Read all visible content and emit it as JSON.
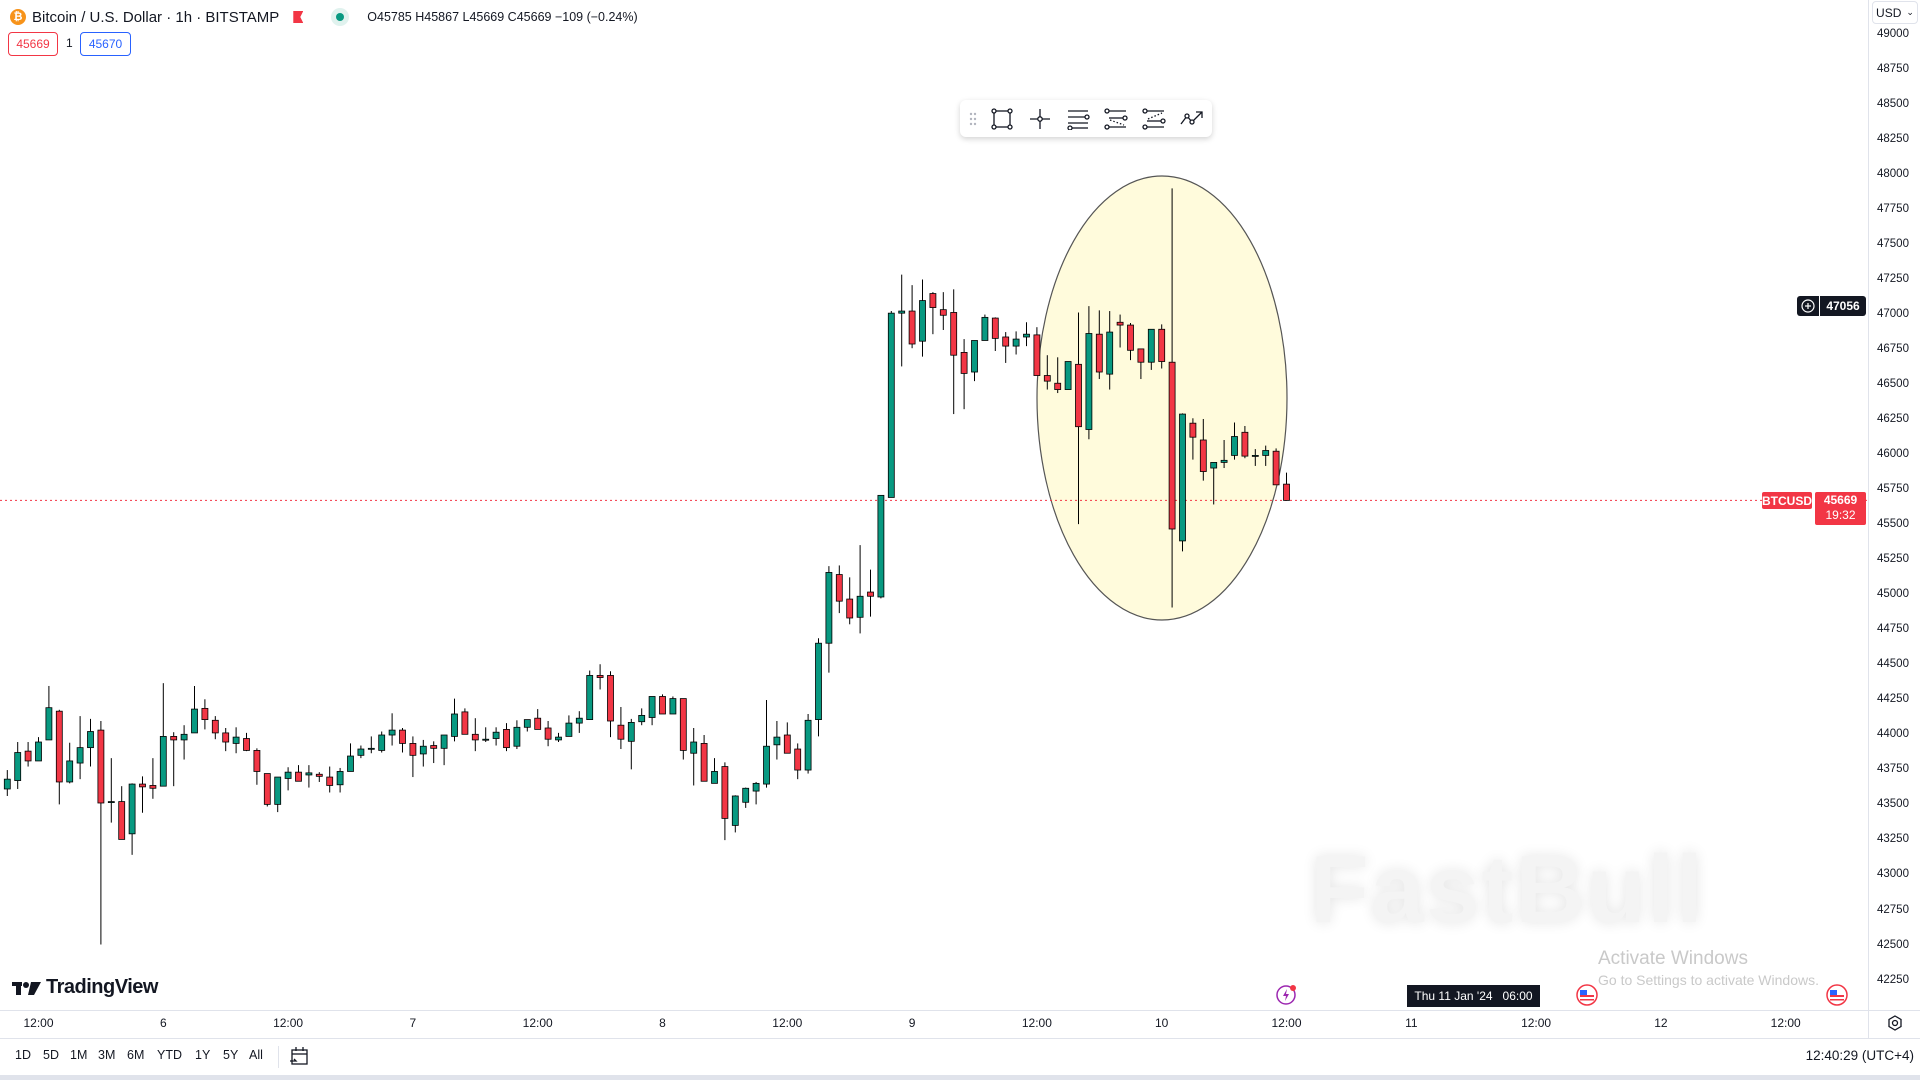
{
  "header": {
    "coin_icon": "bitcoin-icon",
    "title": "Bitcoin / U.S. Dollar · 1h · BITSTAMP",
    "ohlc": "O45785 H45867 L45669 C45669 −109 (−0.24%)",
    "sell_price": "45669",
    "spread": "1",
    "buy_price": "45670"
  },
  "currency_button": "USD",
  "drawing_toolbar": {
    "icons": [
      "drag-handle-icon",
      "rectangle-icon",
      "crosshair-icon",
      "horizontal-lines-icon",
      "parallel-channel-icon",
      "regression-channel-icon",
      "trend-arrow-icon"
    ]
  },
  "price_axis": {
    "ticks": [
      "49000",
      "48750",
      "48500",
      "48250",
      "48000",
      "47750",
      "47500",
      "47250",
      "47000",
      "46750",
      "46500",
      "46250",
      "46000",
      "45750",
      "45500",
      "45250",
      "45000",
      "44750",
      "44500",
      "44250",
      "44000",
      "43750",
      "43500",
      "43250",
      "43000",
      "42750",
      "42500",
      "42250"
    ],
    "crosshair_price": "47056",
    "symbol_label": "BTCUSD",
    "last_price": "45669",
    "countdown": "19:32"
  },
  "time_axis": {
    "ticks": [
      "12:00",
      "6",
      "12:00",
      "7",
      "12:00",
      "8",
      "12:00",
      "9",
      "12:00",
      "10",
      "12:00",
      "11",
      "12:00",
      "12",
      "12:00"
    ],
    "crosshair_time": "Thu 11 Jan '24   06:00"
  },
  "bottom_bar": {
    "ranges": [
      "1D",
      "5D",
      "1M",
      "3M",
      "6M",
      "YTD",
      "1Y",
      "5Y",
      "All"
    ],
    "clock": "12:40:29 (UTC+4)"
  },
  "branding": {
    "logo": "TradingView",
    "watermark": "FastBull"
  },
  "os_overlay": {
    "line1": "Activate Windows",
    "line2": "Go to Settings to activate Windows."
  },
  "colors": {
    "up": "#089981",
    "down": "#f23645",
    "highlight": "#fffbdc",
    "sell": "#f23645",
    "buy": "#2962ff"
  },
  "chart_data": {
    "type": "candlestick",
    "symbol": "BTCUSD",
    "interval": "1h",
    "x_start": "Jan 5 09:00",
    "x_end": "Jan 10 12:00",
    "ylim": [
      42000,
      49100
    ],
    "columns": [
      "open",
      "high",
      "low",
      "close"
    ],
    "ohlc": [
      [
        43610,
        43745,
        43560,
        43680
      ],
      [
        43670,
        43945,
        43610,
        43870
      ],
      [
        43880,
        43945,
        43770,
        43810
      ],
      [
        43810,
        43980,
        43810,
        43945
      ],
      [
        43960,
        44345,
        43960,
        44190
      ],
      [
        44165,
        44175,
        43500,
        43660
      ],
      [
        43660,
        43940,
        43650,
        43810
      ],
      [
        43795,
        44130,
        43680,
        43905
      ],
      [
        43905,
        44110,
        43770,
        44020
      ],
      [
        44030,
        44095,
        42500,
        43510
      ],
      [
        43520,
        43830,
        43370,
        43520
      ],
      [
        43520,
        43630,
        43250,
        43250
      ],
      [
        43290,
        43650,
        43140,
        43645
      ],
      [
        43645,
        43700,
        43440,
        43625
      ],
      [
        43635,
        43830,
        43540,
        43615
      ],
      [
        43630,
        44365,
        43630,
        43985
      ],
      [
        43985,
        44015,
        43630,
        43960
      ],
      [
        43960,
        44065,
        43820,
        44000
      ],
      [
        44010,
        44345,
        44010,
        44180
      ],
      [
        44185,
        44250,
        44035,
        44105
      ],
      [
        44100,
        44130,
        43965,
        44010
      ],
      [
        44010,
        44045,
        43880,
        43945
      ],
      [
        43935,
        44050,
        43865,
        43980
      ],
      [
        43970,
        44010,
        43880,
        43885
      ],
      [
        43885,
        43900,
        43640,
        43735
      ],
      [
        43720,
        43720,
        43485,
        43500
      ],
      [
        43500,
        43695,
        43445,
        43695
      ],
      [
        43685,
        43765,
        43600,
        43730
      ],
      [
        43730,
        43780,
        43665,
        43665
      ],
      [
        43710,
        43780,
        43620,
        43725
      ],
      [
        43715,
        43730,
        43660,
        43700
      ],
      [
        43695,
        43770,
        43585,
        43635
      ],
      [
        43640,
        43760,
        43585,
        43735
      ],
      [
        43735,
        43935,
        43735,
        43845
      ],
      [
        43850,
        43920,
        43830,
        43895
      ],
      [
        43900,
        43985,
        43865,
        43900
      ],
      [
        43885,
        44020,
        43870,
        43995
      ],
      [
        43995,
        44150,
        43920,
        44030
      ],
      [
        44030,
        44045,
        43870,
        43935
      ],
      [
        43935,
        43985,
        43695,
        43850
      ],
      [
        43860,
        43960,
        43770,
        43915
      ],
      [
        43920,
        43950,
        43795,
        43900
      ],
      [
        43900,
        43995,
        43780,
        43995
      ],
      [
        43985,
        44255,
        43950,
        44145
      ],
      [
        44160,
        44185,
        44000,
        44000
      ],
      [
        44000,
        44115,
        43880,
        43960
      ],
      [
        43965,
        44050,
        43945,
        43965
      ],
      [
        43970,
        44050,
        43920,
        44015
      ],
      [
        44035,
        44080,
        43880,
        43905
      ],
      [
        43915,
        44100,
        43895,
        44050
      ],
      [
        44050,
        44105,
        44020,
        44105
      ],
      [
        44115,
        44180,
        44035,
        44035
      ],
      [
        44045,
        44095,
        43915,
        43965
      ],
      [
        43960,
        44010,
        43945,
        43980
      ],
      [
        43985,
        44135,
        43985,
        44080
      ],
      [
        44080,
        44165,
        44010,
        44115
      ],
      [
        44105,
        44455,
        44105,
        44420
      ],
      [
        44420,
        44500,
        44320,
        44405
      ],
      [
        44420,
        44450,
        43980,
        44095
      ],
      [
        44065,
        44195,
        43895,
        43965
      ],
      [
        43950,
        44110,
        43750,
        44085
      ],
      [
        44090,
        44185,
        44065,
        44135
      ],
      [
        44120,
        44270,
        44065,
        44270
      ],
      [
        44270,
        44285,
        44145,
        44145
      ],
      [
        44145,
        44270,
        44145,
        44255
      ],
      [
        44255,
        44255,
        43820,
        43885
      ],
      [
        43865,
        44045,
        43635,
        43945
      ],
      [
        43935,
        43995,
        43665,
        43665
      ],
      [
        43650,
        43830,
        43650,
        43735
      ],
      [
        43770,
        43800,
        43245,
        43400
      ],
      [
        43350,
        43565,
        43300,
        43560
      ],
      [
        43515,
        43620,
        43475,
        43615
      ],
      [
        43595,
        43660,
        43500,
        43650
      ],
      [
        43645,
        44245,
        43620,
        43915
      ],
      [
        43925,
        44095,
        43820,
        43980
      ],
      [
        43995,
        44085,
        43865,
        43865
      ],
      [
        43895,
        43935,
        43680,
        43745
      ],
      [
        43745,
        44145,
        43720,
        44100
      ],
      [
        44105,
        44685,
        43985,
        44650
      ],
      [
        44650,
        45200,
        44440,
        45155
      ],
      [
        45140,
        45205,
        44865,
        44950
      ],
      [
        44965,
        45120,
        44785,
        44830
      ],
      [
        44835,
        45350,
        44720,
        44985
      ],
      [
        45015,
        45175,
        44840,
        44985
      ],
      [
        44980,
        45705,
        44970,
        45705
      ],
      [
        45690,
        47020,
        45690,
        47005
      ],
      [
        47005,
        47280,
        46625,
        47020
      ],
      [
        47020,
        47205,
        46755,
        46785
      ],
      [
        46805,
        47245,
        46695,
        47095
      ],
      [
        47145,
        47155,
        46855,
        47045
      ],
      [
        47030,
        47155,
        46885,
        46990
      ],
      [
        47010,
        47175,
        46285,
        46705
      ],
      [
        46725,
        46820,
        46320,
        46575
      ],
      [
        46585,
        46810,
        46520,
        46810
      ],
      [
        46810,
        46995,
        46810,
        46975
      ],
      [
        46970,
        46975,
        46735,
        46825
      ],
      [
        46835,
        46870,
        46650,
        46770
      ],
      [
        46770,
        46875,
        46710,
        46820
      ],
      [
        46835,
        46940,
        46770,
        46855
      ],
      [
        46850,
        46905,
        46560,
        46560
      ],
      [
        46560,
        46705,
        46460,
        46520
      ],
      [
        46505,
        46690,
        46435,
        46460
      ],
      [
        46460,
        46660,
        46460,
        46660
      ],
      [
        46640,
        47010,
        45500,
        46195
      ],
      [
        46175,
        47055,
        46105,
        46860
      ],
      [
        46855,
        47025,
        46535,
        46585
      ],
      [
        46570,
        47020,
        46460,
        46870
      ],
      [
        46940,
        46995,
        46760,
        46920
      ],
      [
        46920,
        46935,
        46670,
        46740
      ],
      [
        46750,
        46750,
        46535,
        46655
      ],
      [
        46655,
        46890,
        46600,
        46890
      ],
      [
        46890,
        46925,
        46610,
        46660
      ],
      [
        46655,
        47895,
        44905,
        45465
      ],
      [
        45380,
        46290,
        45305,
        46285
      ],
      [
        46220,
        46255,
        45960,
        46120
      ],
      [
        46100,
        46250,
        45810,
        45875
      ],
      [
        45900,
        45940,
        45640,
        45940
      ],
      [
        45940,
        46100,
        45900,
        45955
      ],
      [
        45990,
        46225,
        45960,
        46125
      ],
      [
        46155,
        46200,
        45970,
        45985
      ],
      [
        45990,
        46035,
        45915,
        45990
      ],
      [
        45990,
        46060,
        45915,
        46025
      ],
      [
        46020,
        46040,
        45780,
        45780
      ],
      [
        45785,
        45867,
        45669,
        45669
      ]
    ],
    "last_price_line": 45669,
    "grid": false
  }
}
